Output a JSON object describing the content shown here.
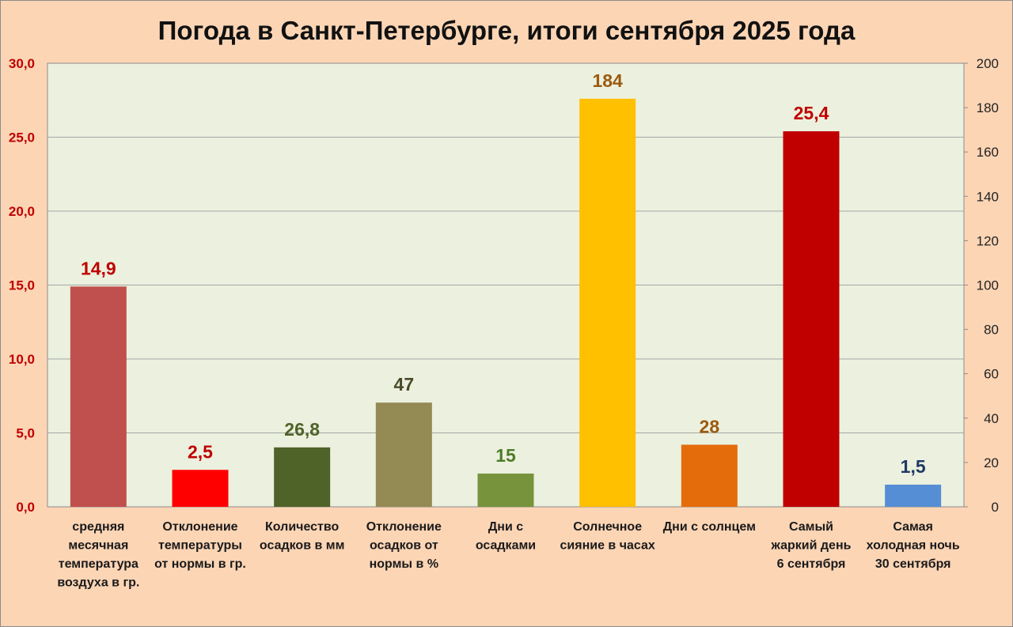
{
  "chart_data": {
    "type": "bar",
    "title": "Погода в Санкт-Петербурге, итоги сентября 2025 года",
    "xlabel": "",
    "ylabel": "",
    "ylim": [
      0,
      30
    ],
    "y2lim": [
      0,
      200
    ],
    "grid": true,
    "left_ticks": [
      "0,0",
      "5,0",
      "10,0",
      "15,0",
      "20,0",
      "25,0",
      "30,0"
    ],
    "right_ticks": [
      "0",
      "20",
      "40",
      "60",
      "80",
      "100",
      "120",
      "140",
      "160",
      "180",
      "200"
    ],
    "categories": [
      [
        "средняя",
        "месячная",
        "температура",
        "воздуха в гр."
      ],
      [
        "Отклонение",
        "температуры",
        "от нормы в гр."
      ],
      [
        "Количество",
        "осадков в мм"
      ],
      [
        "Отклонение",
        "осадков от",
        "нормы в %"
      ],
      [
        "Дни с",
        "осадками"
      ],
      [
        "Солнечное",
        "сияние в часах"
      ],
      [
        "Дни с солнцем"
      ],
      [
        "Самый",
        "жаркий день",
        "6 сентября"
      ],
      [
        "Самая",
        "холодная ночь",
        "30 сентября"
      ]
    ],
    "values": [
      14.9,
      2.5,
      26.8,
      47,
      15,
      184,
      28,
      25.4,
      1.5
    ],
    "value_labels": [
      "14,9",
      "2,5",
      "26,8",
      "47",
      "15",
      "184",
      "28",
      "25,4",
      "1,5"
    ],
    "axis": [
      "left",
      "left",
      "right",
      "right",
      "right",
      "right",
      "right",
      "left",
      "left"
    ],
    "bar_colors": [
      "#c0504d",
      "#ff0000",
      "#4f6228",
      "#948a54",
      "#77933c",
      "#ffc000",
      "#e46c0a",
      "#c00000",
      "#558ed5"
    ],
    "label_colors": [
      "#c00000",
      "#c00000",
      "#4f6228",
      "#4a4a2a",
      "#4f7a28",
      "#9c5a10",
      "#9c5a10",
      "#c00000",
      "#1f3864"
    ]
  }
}
